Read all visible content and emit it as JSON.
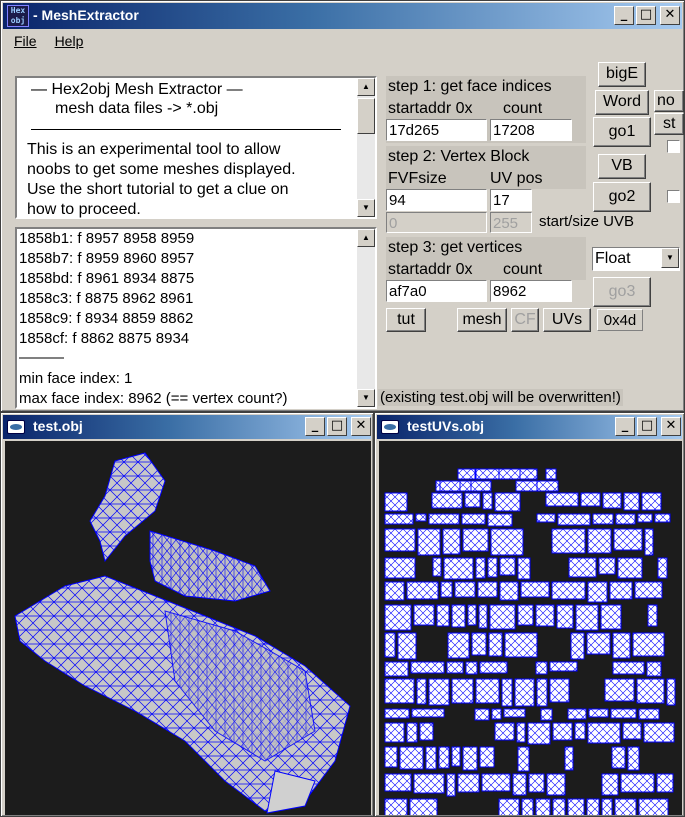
{
  "main_window": {
    "title": "- MeshExtractor",
    "icon_text": "Hex obj",
    "menu": [
      "File",
      "Help"
    ]
  },
  "info": {
    "heading1": "—   Hex2obj Mesh Extractor   —",
    "heading2": "mesh data files -> *.obj",
    "line1": "This is an experimental tool to allow",
    "line2": "noobs to get some meshes displayed.",
    "line3": "Use the short tutorial to get a clue on",
    "line4": "how to proceed."
  },
  "log": {
    "lines": [
      "1858b1: f  8957 8958 8959",
      "1858b7: f  8959 8960 8957",
      "1858bd: f  8961 8934 8875",
      "1858c3: f  8875 8962 8961",
      "1858c9: f  8934 8859 8862",
      "1858cf: f  8862 8875 8934",
      "———",
      "min face index: 1",
      "max face index: 8962 (== vertex count?)"
    ]
  },
  "step1": {
    "label": "step 1: get face indices",
    "startaddr_label": "startaddr 0x",
    "count_label": "count",
    "startaddr": "17d265",
    "count": "17208"
  },
  "step2": {
    "label": "step 2: Vertex Block",
    "fvf_label": "FVFsize",
    "uvpos_label": "UV pos",
    "fvfsize": "94",
    "uvpos": "17",
    "uvb_start": "0",
    "uvb_size": "255",
    "uvb_label": "start/size UVB"
  },
  "step3": {
    "label": "step 3: get vertices",
    "startaddr_label": "startaddr 0x",
    "count_label": "count",
    "startaddr": "af7a0",
    "count": "8962",
    "format": "Float"
  },
  "buttons": {
    "bigE": "bigE",
    "word": "Word",
    "go1": "go1",
    "vb": "VB",
    "go2": "go2",
    "go3": "go3",
    "tut": "tut",
    "mesh": "mesh",
    "cf": "CF",
    "uvs": "UVs",
    "hex": "0x4d",
    "no": "no",
    "st": "st"
  },
  "notice": "(existing test.obj will be overwritten!)",
  "mesh_window": {
    "title": "test.obj"
  },
  "uv_window": {
    "title": "testUVs.obj"
  },
  "colors": {
    "wire": "#0000ff",
    "fill": "#c8c8c8",
    "bg": "#1c1c1c"
  }
}
